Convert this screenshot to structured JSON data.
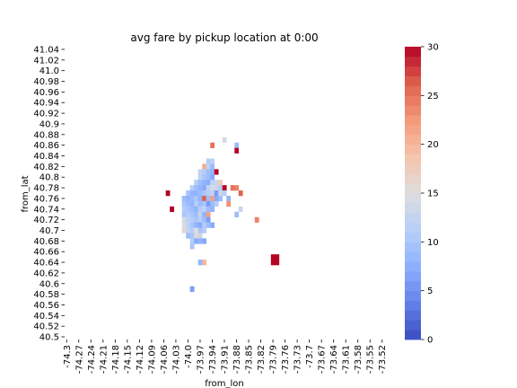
{
  "chart_data": {
    "type": "heatmap",
    "title": "avg fare by pickup location at 0:00",
    "xlabel": "from_lon",
    "ylabel": "from_lat",
    "x_ticks": [
      "-74.3",
      "-74.27",
      "-74.24",
      "-74.21",
      "-74.18",
      "-74.15",
      "-74.12",
      "-74.09",
      "-74.06",
      "-74.03",
      "-74.0",
      "-73.97",
      "-73.94",
      "-73.91",
      "-73.88",
      "-73.85",
      "-73.82",
      "-73.79",
      "-73.76",
      "-73.73",
      "-73.7",
      "-73.67",
      "-73.64",
      "-73.61",
      "-73.58",
      "-73.55",
      "-73.52"
    ],
    "y_ticks": [
      "41.04",
      "41.02",
      "41.0",
      "40.98",
      "40.96",
      "40.94",
      "40.92",
      "40.9",
      "40.88",
      "40.86",
      "40.84",
      "40.82",
      "40.8",
      "40.78",
      "40.76",
      "40.74",
      "40.72",
      "40.7",
      "40.68",
      "40.66",
      "40.64",
      "40.62",
      "40.6",
      "40.58",
      "40.56",
      "40.54",
      "40.52",
      "40.5"
    ],
    "xlim": [
      -74.3,
      -73.52
    ],
    "ylim": [
      40.5,
      41.04
    ],
    "colorbar": {
      "min": 0,
      "max": 30,
      "ticks": [
        "0",
        "5",
        "10",
        "15",
        "20",
        "25",
        "30"
      ],
      "colormap": "coolwarm"
    },
    "cells": [
      {
        "lon": -73.91,
        "lat": 40.87,
        "value": 14
      },
      {
        "lon": -73.94,
        "lat": 40.86,
        "value": 25
      },
      {
        "lon": -73.88,
        "lat": 40.86,
        "value": 9
      },
      {
        "lon": -73.88,
        "lat": 40.85,
        "value": 30
      },
      {
        "lon": -73.94,
        "lat": 40.83,
        "value": 12
      },
      {
        "lon": -73.95,
        "lat": 40.83,
        "value": 11
      },
      {
        "lon": -73.96,
        "lat": 40.82,
        "value": 21
      },
      {
        "lon": -73.95,
        "lat": 40.82,
        "value": 12
      },
      {
        "lon": -73.94,
        "lat": 40.82,
        "value": 9
      },
      {
        "lon": -73.97,
        "lat": 40.81,
        "value": 12
      },
      {
        "lon": -73.96,
        "lat": 40.81,
        "value": 11
      },
      {
        "lon": -73.95,
        "lat": 40.81,
        "value": 9
      },
      {
        "lon": -73.94,
        "lat": 40.81,
        "value": 8
      },
      {
        "lon": -73.93,
        "lat": 40.81,
        "value": 30
      },
      {
        "lon": -73.97,
        "lat": 40.8,
        "value": 12
      },
      {
        "lon": -73.96,
        "lat": 40.8,
        "value": 10
      },
      {
        "lon": -73.95,
        "lat": 40.8,
        "value": 9
      },
      {
        "lon": -73.94,
        "lat": 40.8,
        "value": 7
      },
      {
        "lon": -73.98,
        "lat": 40.79,
        "value": 11
      },
      {
        "lon": -73.97,
        "lat": 40.79,
        "value": 9
      },
      {
        "lon": -73.96,
        "lat": 40.79,
        "value": 8
      },
      {
        "lon": -73.95,
        "lat": 40.79,
        "value": 7
      },
      {
        "lon": -73.94,
        "lat": 40.79,
        "value": 12
      },
      {
        "lon": -73.93,
        "lat": 40.79,
        "value": 13
      },
      {
        "lon": -73.92,
        "lat": 40.79,
        "value": 18
      },
      {
        "lon": -73.99,
        "lat": 40.78,
        "value": 11
      },
      {
        "lon": -73.98,
        "lat": 40.78,
        "value": 9
      },
      {
        "lon": -73.97,
        "lat": 40.78,
        "value": 8
      },
      {
        "lon": -73.96,
        "lat": 40.78,
        "value": 7
      },
      {
        "lon": -73.95,
        "lat": 40.78,
        "value": 12
      },
      {
        "lon": -73.94,
        "lat": 40.78,
        "value": 14
      },
      {
        "lon": -73.93,
        "lat": 40.78,
        "value": 13
      },
      {
        "lon": -73.92,
        "lat": 40.78,
        "value": 11
      },
      {
        "lon": -73.91,
        "lat": 40.78,
        "value": 30
      },
      {
        "lon": -73.89,
        "lat": 40.78,
        "value": 25
      },
      {
        "lon": -73.88,
        "lat": 40.78,
        "value": 24
      },
      {
        "lon": -74.05,
        "lat": 40.77,
        "value": 30
      },
      {
        "lon": -74.0,
        "lat": 40.77,
        "value": 10
      },
      {
        "lon": -73.99,
        "lat": 40.77,
        "value": 8
      },
      {
        "lon": -73.98,
        "lat": 40.77,
        "value": 8
      },
      {
        "lon": -73.97,
        "lat": 40.77,
        "value": 9
      },
      {
        "lon": -73.96,
        "lat": 40.77,
        "value": 10
      },
      {
        "lon": -73.95,
        "lat": 40.77,
        "value": 11
      },
      {
        "lon": -73.94,
        "lat": 40.77,
        "value": 12
      },
      {
        "lon": -73.93,
        "lat": 40.77,
        "value": 6
      },
      {
        "lon": -73.92,
        "lat": 40.77,
        "value": 13
      },
      {
        "lon": -73.91,
        "lat": 40.77,
        "value": 11
      },
      {
        "lon": -73.87,
        "lat": 40.77,
        "value": 26
      },
      {
        "lon": -74.01,
        "lat": 40.76,
        "value": 9
      },
      {
        "lon": -74.0,
        "lat": 40.76,
        "value": 8
      },
      {
        "lon": -73.99,
        "lat": 40.76,
        "value": 9
      },
      {
        "lon": -73.98,
        "lat": 40.76,
        "value": 10
      },
      {
        "lon": -73.97,
        "lat": 40.76,
        "value": 8
      },
      {
        "lon": -73.96,
        "lat": 40.76,
        "value": 26
      },
      {
        "lon": -73.95,
        "lat": 40.76,
        "value": 9
      },
      {
        "lon": -73.94,
        "lat": 40.76,
        "value": 22
      },
      {
        "lon": -73.93,
        "lat": 40.76,
        "value": 7
      },
      {
        "lon": -73.92,
        "lat": 40.76,
        "value": 9
      },
      {
        "lon": -73.9,
        "lat": 40.76,
        "value": 8
      },
      {
        "lon": -74.01,
        "lat": 40.75,
        "value": 10
      },
      {
        "lon": -74.0,
        "lat": 40.75,
        "value": 9
      },
      {
        "lon": -73.99,
        "lat": 40.75,
        "value": 8
      },
      {
        "lon": -73.98,
        "lat": 40.75,
        "value": 11
      },
      {
        "lon": -73.97,
        "lat": 40.75,
        "value": 9
      },
      {
        "lon": -73.96,
        "lat": 40.75,
        "value": 10
      },
      {
        "lon": -73.95,
        "lat": 40.75,
        "value": 6
      },
      {
        "lon": -73.94,
        "lat": 40.75,
        "value": 9
      },
      {
        "lon": -73.93,
        "lat": 40.75,
        "value": 11
      },
      {
        "lon": -73.9,
        "lat": 40.75,
        "value": 23
      },
      {
        "lon": -74.04,
        "lat": 40.74,
        "value": 30
      },
      {
        "lon": -74.01,
        "lat": 40.74,
        "value": 11
      },
      {
        "lon": -74.0,
        "lat": 40.74,
        "value": 10
      },
      {
        "lon": -73.99,
        "lat": 40.74,
        "value": 9
      },
      {
        "lon": -73.98,
        "lat": 40.74,
        "value": 8
      },
      {
        "lon": -73.97,
        "lat": 40.74,
        "value": 11
      },
      {
        "lon": -73.96,
        "lat": 40.74,
        "value": 12
      },
      {
        "lon": -73.95,
        "lat": 40.74,
        "value": 9
      },
      {
        "lon": -73.94,
        "lat": 40.74,
        "value": 8
      },
      {
        "lon": -73.87,
        "lat": 40.74,
        "value": 13
      },
      {
        "lon": -74.01,
        "lat": 40.73,
        "value": 10
      },
      {
        "lon": -74.0,
        "lat": 40.73,
        "value": 11
      },
      {
        "lon": -73.99,
        "lat": 40.73,
        "value": 10
      },
      {
        "lon": -73.98,
        "lat": 40.73,
        "value": 9
      },
      {
        "lon": -73.97,
        "lat": 40.73,
        "value": 12
      },
      {
        "lon": -73.96,
        "lat": 40.73,
        "value": 8
      },
      {
        "lon": -73.95,
        "lat": 40.73,
        "value": 22
      },
      {
        "lon": -73.88,
        "lat": 40.73,
        "value": 9
      },
      {
        "lon": -74.01,
        "lat": 40.72,
        "value": 14
      },
      {
        "lon": -74.0,
        "lat": 40.72,
        "value": 12
      },
      {
        "lon": -73.99,
        "lat": 40.72,
        "value": 11
      },
      {
        "lon": -73.98,
        "lat": 40.72,
        "value": 10
      },
      {
        "lon": -73.97,
        "lat": 40.72,
        "value": 11
      },
      {
        "lon": -73.96,
        "lat": 40.72,
        "value": 9
      },
      {
        "lon": -73.95,
        "lat": 40.72,
        "value": 6
      },
      {
        "lon": -73.83,
        "lat": 40.72,
        "value": 24
      },
      {
        "lon": -74.01,
        "lat": 40.71,
        "value": 15
      },
      {
        "lon": -74.0,
        "lat": 40.71,
        "value": 12
      },
      {
        "lon": -73.99,
        "lat": 40.71,
        "value": 10
      },
      {
        "lon": -73.98,
        "lat": 40.71,
        "value": 8
      },
      {
        "lon": -73.97,
        "lat": 40.71,
        "value": 7
      },
      {
        "lon": -73.96,
        "lat": 40.71,
        "value": 11
      },
      {
        "lon": -73.95,
        "lat": 40.71,
        "value": 9
      },
      {
        "lon": -73.94,
        "lat": 40.71,
        "value": 7
      },
      {
        "lon": -74.01,
        "lat": 40.7,
        "value": 16
      },
      {
        "lon": -74.0,
        "lat": 40.7,
        "value": 12
      },
      {
        "lon": -73.99,
        "lat": 40.7,
        "value": 11
      },
      {
        "lon": -73.98,
        "lat": 40.7,
        "value": 15
      },
      {
        "lon": -73.97,
        "lat": 40.7,
        "value": 10
      },
      {
        "lon": -73.96,
        "lat": 40.7,
        "value": 11
      },
      {
        "lon": -74.0,
        "lat": 40.69,
        "value": 9
      },
      {
        "lon": -73.99,
        "lat": 40.69,
        "value": 10
      },
      {
        "lon": -73.98,
        "lat": 40.69,
        "value": 16
      },
      {
        "lon": -73.97,
        "lat": 40.69,
        "value": 13
      },
      {
        "lon": -73.99,
        "lat": 40.68,
        "value": 11
      },
      {
        "lon": -73.98,
        "lat": 40.68,
        "value": 7
      },
      {
        "lon": -73.97,
        "lat": 40.68,
        "value": 8
      },
      {
        "lon": -73.96,
        "lat": 40.68,
        "value": 7
      },
      {
        "lon": -73.99,
        "lat": 40.67,
        "value": 10
      },
      {
        "lon": -73.79,
        "lat": 40.65,
        "value": 30
      },
      {
        "lon": -73.78,
        "lat": 40.65,
        "value": 30
      },
      {
        "lon": -73.97,
        "lat": 40.64,
        "value": 8
      },
      {
        "lon": -73.96,
        "lat": 40.64,
        "value": 20
      },
      {
        "lon": -73.79,
        "lat": 40.64,
        "value": 30
      },
      {
        "lon": -73.78,
        "lat": 40.64,
        "value": 30
      },
      {
        "lon": -73.99,
        "lat": 40.59,
        "value": 6
      }
    ]
  }
}
